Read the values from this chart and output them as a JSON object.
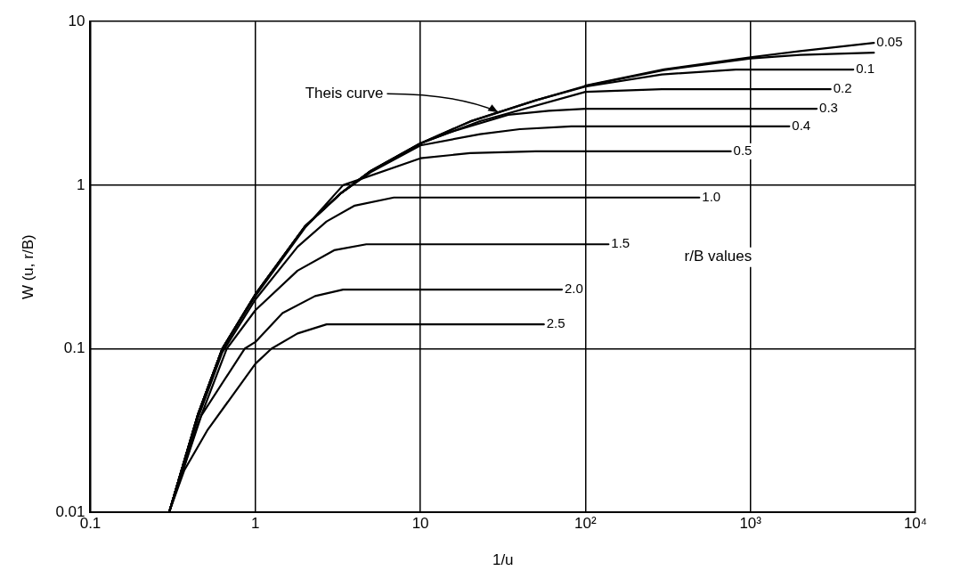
{
  "chart_data": {
    "type": "line",
    "xlabel": "1/u",
    "ylabel": "W (u, r/B)",
    "log": "xy",
    "grid": true,
    "marker": "none",
    "line_style": "solid",
    "xlim": [
      0.1,
      10000
    ],
    "xticks": [
      0.1,
      1,
      10,
      {
        "value": 100,
        "label": "10²"
      },
      {
        "value": 1000,
        "label": "10³"
      },
      {
        "value": 10000,
        "label": "10⁴"
      }
    ],
    "ylim": [
      0.01,
      10
    ],
    "yticks": [
      0.01,
      0.1,
      1,
      10
    ],
    "annotations": [
      {
        "text": "Theis curve",
        "x": 30,
        "y": 2.75
      },
      "r/B values"
    ],
    "series": [
      {
        "color": "#000000",
        "x": [
          0.3,
          0.45,
          0.63,
          1,
          2,
          3.33,
          5,
          10,
          20,
          50,
          100,
          300,
          1000,
          2000,
          5600
        ],
        "values": [
          0.01,
          0.04,
          0.1,
          0.215,
          0.56,
          0.9,
          1.22,
          1.8,
          2.45,
          3.3,
          4.04,
          5.05,
          5.95,
          6.25,
          6.45
        ]
      },
      {
        "name": "0.05",
        "color": "#000000",
        "x": [
          100,
          300,
          1000,
          2000,
          5600
        ],
        "values": [
          4.06,
          5.1,
          6.05,
          6.6,
          7.4
        ]
      },
      {
        "name": "0.1",
        "color": "#000000",
        "x": [
          0.3,
          0.45,
          0.63,
          1,
          2,
          3.33,
          5,
          10,
          20,
          50,
          100,
          290,
          815,
          4200
        ],
        "values": [
          0.01,
          0.04,
          0.1,
          0.215,
          0.56,
          0.9,
          1.22,
          1.8,
          2.45,
          3.3,
          4.0,
          4.75,
          5.09,
          5.09
        ]
      },
      {
        "name": "0.2",
        "color": "#000000",
        "x": [
          0.3,
          0.45,
          0.63,
          1,
          2,
          3.33,
          5,
          10,
          23,
          100,
          290,
          3060
        ],
        "values": [
          0.01,
          0.04,
          0.1,
          0.215,
          0.56,
          0.9,
          1.22,
          1.8,
          2.46,
          3.72,
          3.86,
          3.86
        ]
      },
      {
        "name": "0.3",
        "color": "#000000",
        "x": [
          0.3,
          0.45,
          0.63,
          1,
          2,
          3.33,
          5,
          10,
          15,
          34,
          60,
          100,
          2520
        ],
        "values": [
          0.01,
          0.04,
          0.1,
          0.215,
          0.56,
          0.9,
          1.22,
          1.8,
          2.1,
          2.69,
          2.85,
          2.93,
          2.93
        ]
      },
      {
        "name": "0.4",
        "color": "#000000",
        "x": [
          0.3,
          0.45,
          0.63,
          1,
          2,
          3.33,
          5,
          10,
          23,
          40,
          82,
          1720
        ],
        "values": [
          0.01,
          0.04,
          0.1,
          0.215,
          0.56,
          0.9,
          1.2,
          1.75,
          2.05,
          2.2,
          2.29,
          2.29
        ]
      },
      {
        "name": "0.5",
        "color": "#000000",
        "x": [
          0.3,
          0.45,
          0.63,
          1,
          2,
          3.4,
          10,
          20,
          50,
          760
        ],
        "values": [
          0.01,
          0.04,
          0.1,
          0.21,
          0.55,
          1.0,
          1.46,
          1.57,
          1.61,
          1.61
        ]
      },
      {
        "name": "1.0",
        "color": "#000000",
        "x": [
          0.3,
          0.45,
          0.63,
          1,
          1.8,
          2.7,
          4,
          6.9,
          490
        ],
        "values": [
          0.01,
          0.038,
          0.095,
          0.2,
          0.42,
          0.6,
          0.75,
          0.84,
          0.84
        ]
      },
      {
        "name": "1.5",
        "color": "#000000",
        "x": [
          0.3,
          0.45,
          0.67,
          1,
          1.8,
          3,
          4.7,
          138
        ],
        "values": [
          0.01,
          0.035,
          0.1,
          0.172,
          0.3,
          0.4,
          0.435,
          0.435
        ]
      },
      {
        "name": "2.0",
        "color": "#000000",
        "x": [
          0.3,
          0.47,
          0.86,
          1,
          1.46,
          2.3,
          3.4,
          72
        ],
        "values": [
          0.01,
          0.039,
          0.1,
          0.11,
          0.165,
          0.21,
          0.23,
          0.23
        ]
      },
      {
        "name": "2.5",
        "color": "#000000",
        "x": [
          0.3,
          0.37,
          0.51,
          1,
          1.25,
          1.8,
          2.7,
          56
        ],
        "values": [
          0.01,
          0.018,
          0.0316,
          0.081,
          0.1,
          0.124,
          0.141,
          0.141
        ]
      }
    ]
  }
}
